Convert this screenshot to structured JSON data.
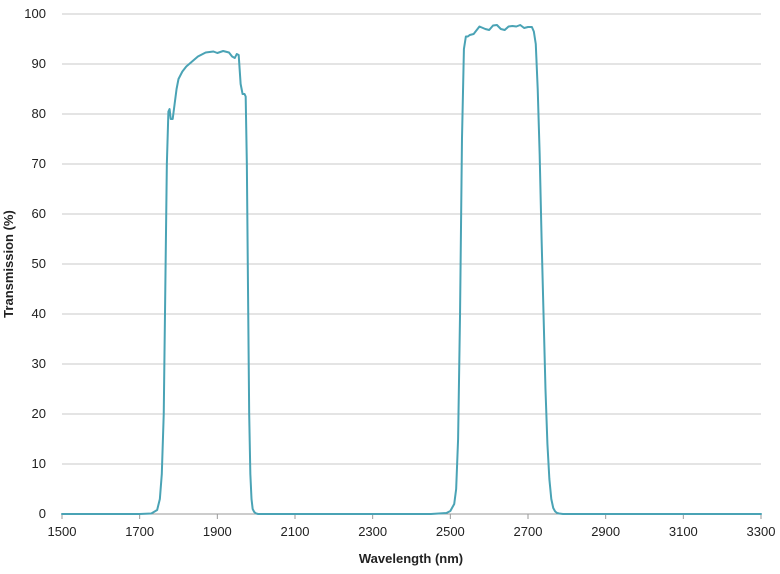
{
  "chart_data": {
    "type": "line",
    "xlabel": "Wavelength (nm)",
    "ylabel": "Transmission (%)",
    "xlim": [
      1500,
      3300
    ],
    "ylim": [
      0,
      100
    ],
    "x_ticks": [
      1500,
      1700,
      1900,
      2100,
      2300,
      2500,
      2700,
      2900,
      3100,
      3300
    ],
    "y_ticks": [
      0,
      10,
      20,
      30,
      40,
      50,
      60,
      70,
      80,
      90,
      100
    ],
    "grid": "horizontal",
    "legend": "none",
    "series": [
      {
        "color": "#4aa3b5",
        "x": [
          1500,
          1700,
          1730,
          1745,
          1752,
          1757,
          1762,
          1766,
          1770,
          1774,
          1777,
          1780,
          1785,
          1790,
          1795,
          1800,
          1810,
          1820,
          1835,
          1850,
          1870,
          1890,
          1900,
          1915,
          1930,
          1938,
          1945,
          1950,
          1955,
          1960,
          1965,
          1970,
          1973,
          1976,
          1979,
          1982,
          1985,
          1988,
          1991,
          1995,
          2000,
          2005,
          2010,
          2030,
          2100,
          2300,
          2450,
          2490,
          2500,
          2510,
          2515,
          2520,
          2525,
          2530,
          2535,
          2540,
          2545,
          2550,
          2560,
          2575,
          2590,
          2600,
          2610,
          2620,
          2630,
          2640,
          2650,
          2660,
          2670,
          2680,
          2690,
          2700,
          2710,
          2715,
          2720,
          2725,
          2730,
          2735,
          2740,
          2745,
          2750,
          2755,
          2760,
          2765,
          2770,
          2775,
          2780,
          2790,
          2800,
          2820,
          2900,
          3100,
          3300
        ],
        "y": [
          0,
          0,
          0.1,
          0.8,
          3,
          8,
          20,
          45,
          70,
          80.5,
          81,
          79,
          79,
          82,
          85,
          87,
          88.5,
          89.5,
          90.5,
          91.5,
          92.3,
          92.5,
          92.2,
          92.6,
          92.3,
          91.5,
          91.2,
          92,
          91.8,
          86,
          84,
          84,
          83.5,
          70,
          45,
          20,
          8,
          3,
          1,
          0.4,
          0.1,
          0,
          0,
          0,
          0,
          0,
          0,
          0.2,
          0.6,
          2,
          5,
          15,
          40,
          75,
          93,
          95.5,
          95.5,
          95.8,
          96,
          97.5,
          97,
          96.8,
          97.7,
          97.8,
          97,
          96.8,
          97.5,
          97.6,
          97.5,
          97.8,
          97.2,
          97.4,
          97.4,
          96.5,
          94,
          85,
          72,
          55,
          40,
          25,
          14,
          7,
          3,
          1.2,
          0.5,
          0.2,
          0.1,
          0,
          0,
          0,
          0,
          0,
          0
        ]
      }
    ]
  }
}
